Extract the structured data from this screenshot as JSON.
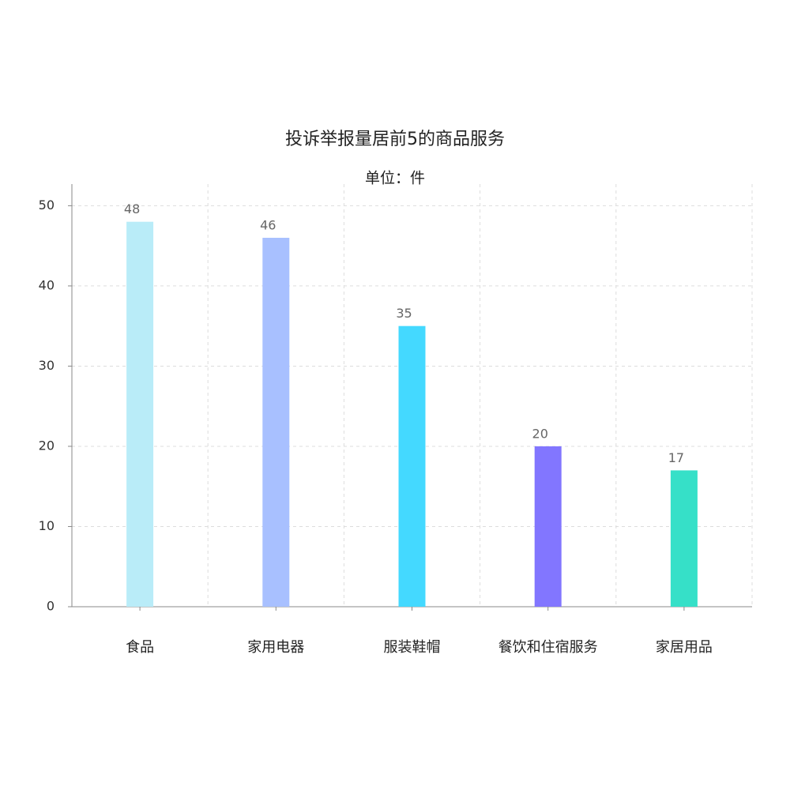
{
  "chart_data": {
    "type": "bar",
    "title": "投诉举报量居前5的商品服务",
    "subtitle": "单位：件",
    "categories": [
      "食品",
      "家用电器",
      "服装鞋帽",
      "餐饮和住宿服务",
      "家居用品"
    ],
    "values": [
      48,
      46,
      35,
      20,
      17
    ],
    "colors": [
      "#b9ecf8",
      "#a8c0ff",
      "#44d9ff",
      "#8276ff",
      "#36e0c8"
    ],
    "ylim": [
      0,
      52.7
    ],
    "yticks": [
      0,
      10,
      20,
      30,
      40,
      50
    ],
    "grid": true
  }
}
